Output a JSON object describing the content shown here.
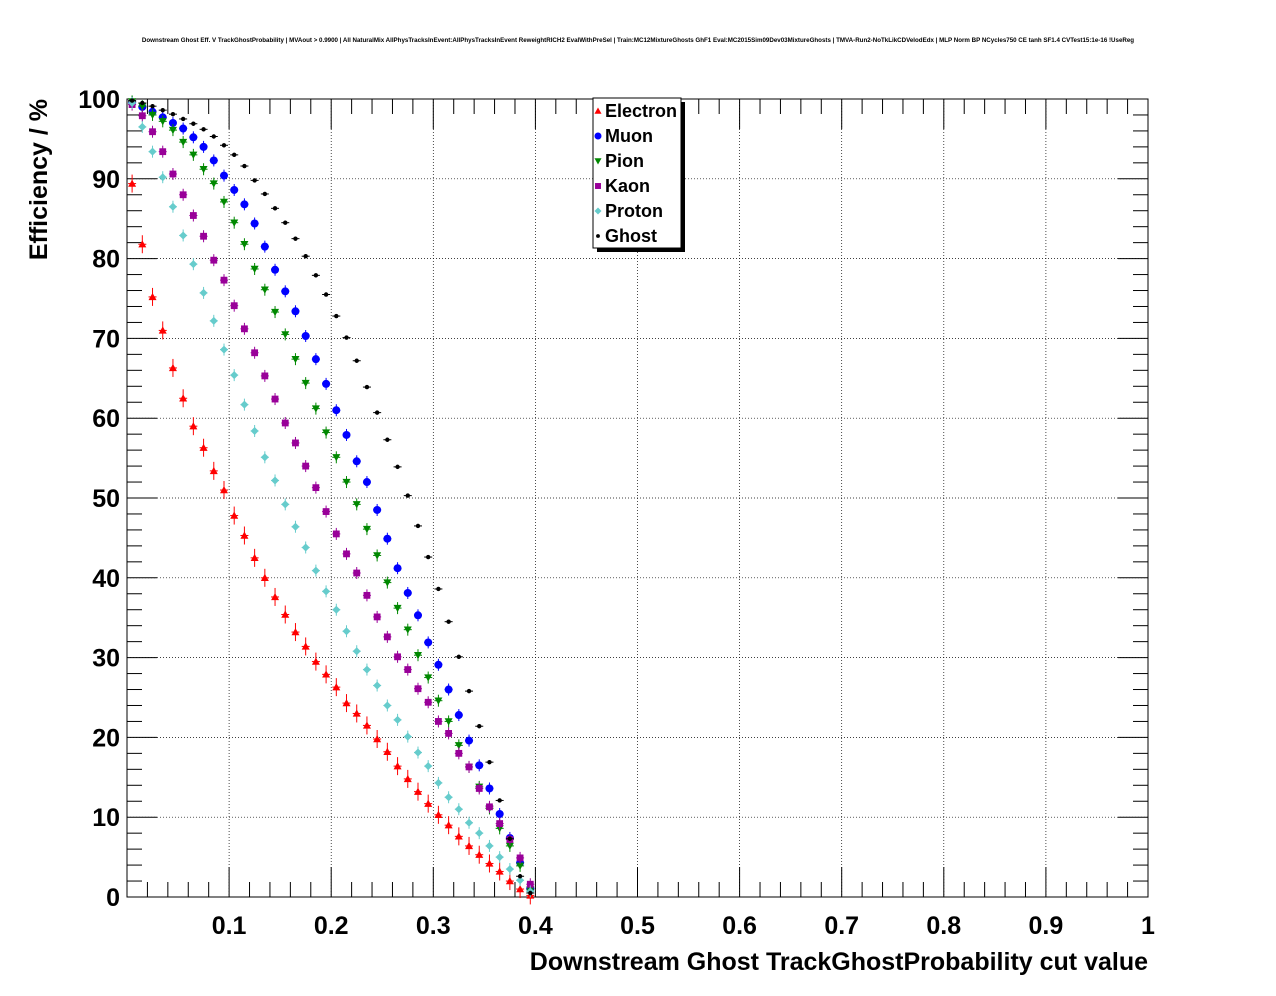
{
  "chart_data": {
    "type": "scatter",
    "title": "Downstream Ghost Eff. V TrackGhostProbability | MVAout > 0.9900 | All NaturalMix AllPhysTracksInEvent:AllPhysTracksInEvent ReweightRICH2 EvalWithPreSel | Train:MC12MixtureGhosts GhF1 Eval:MC2015Sim09Dev03MixtureGhosts | TMVA-Run2-NoTkLikCDVelodEdx | MLP Norm BP NCycles750 CE tanh SF1.4 CVTest15:1e-16 !UseReg",
    "xlabel": "Downstream Ghost TrackGhostProbability cut value",
    "ylabel": "Efficiency / %",
    "xlim": [
      0,
      1
    ],
    "ylim": [
      0,
      100
    ],
    "x_ticks": [
      0.1,
      0.2,
      0.3,
      0.4,
      0.5,
      0.6,
      0.7,
      0.8,
      0.9,
      1
    ],
    "x_tick_labels": [
      "0.1",
      "0.2",
      "0.3",
      "0.4",
      "0.5",
      "0.6",
      "0.7",
      "0.8",
      "0.9",
      "1"
    ],
    "y_ticks": [
      0,
      10,
      20,
      30,
      40,
      50,
      60,
      70,
      80,
      90,
      100
    ],
    "y_tick_labels": [
      "0",
      "10",
      "20",
      "30",
      "40",
      "50",
      "60",
      "70",
      "80",
      "90",
      "100"
    ],
    "grid": true,
    "legend_position": "top-center",
    "x": [
      0.005,
      0.015,
      0.025,
      0.035,
      0.045,
      0.055,
      0.065,
      0.075,
      0.085,
      0.095,
      0.105,
      0.115,
      0.125,
      0.135,
      0.145,
      0.155,
      0.165,
      0.175,
      0.185,
      0.195,
      0.205,
      0.215,
      0.225,
      0.235,
      0.245,
      0.255,
      0.265,
      0.275,
      0.285,
      0.295,
      0.305,
      0.315,
      0.325,
      0.335,
      0.345,
      0.355,
      0.365,
      0.375,
      0.385,
      0.395
    ],
    "series": [
      {
        "name": "Electron",
        "marker": "triangle-up",
        "color": "#ff0000",
        "values": [
          89.4,
          81.8,
          75.2,
          71.0,
          66.3,
          62.5,
          59.0,
          56.3,
          53.4,
          51.0,
          47.8,
          45.3,
          42.5,
          40.0,
          37.6,
          35.4,
          33.2,
          31.4,
          29.5,
          27.9,
          26.3,
          24.3,
          23.0,
          21.5,
          19.8,
          18.2,
          16.4,
          14.8,
          13.2,
          11.7,
          10.3,
          9.0,
          7.6,
          6.4,
          5.3,
          4.2,
          3.2,
          2.0,
          1.0,
          0.2
        ]
      },
      {
        "name": "Muon",
        "marker": "circle",
        "color": "#0000ff",
        "values": [
          99.6,
          99.0,
          98.4,
          97.7,
          97.0,
          96.3,
          95.2,
          94.0,
          92.3,
          90.4,
          88.6,
          86.8,
          84.4,
          81.5,
          78.6,
          75.9,
          73.4,
          70.3,
          67.4,
          64.3,
          61.0,
          57.9,
          54.6,
          52.0,
          48.5,
          44.9,
          41.2,
          38.1,
          35.3,
          31.9,
          29.1,
          26.0,
          22.8,
          19.6,
          16.5,
          13.6,
          10.4,
          7.4,
          4.3,
          1.1
        ]
      },
      {
        "name": "Pion",
        "marker": "triangle-down",
        "color": "#008800",
        "values": [
          99.7,
          99.1,
          98.0,
          97.2,
          96.1,
          94.6,
          93.0,
          91.2,
          89.4,
          87.1,
          84.5,
          81.8,
          78.7,
          76.1,
          73.3,
          70.5,
          67.4,
          64.4,
          61.2,
          58.2,
          55.1,
          52.0,
          49.2,
          46.1,
          42.8,
          39.4,
          36.2,
          33.5,
          30.3,
          27.5,
          24.6,
          22.0,
          19.0,
          16.3,
          13.8,
          11.1,
          8.6,
          6.4,
          3.9,
          0.9
        ]
      },
      {
        "name": "Kaon",
        "marker": "square",
        "color": "#990099",
        "values": [
          99.3,
          97.9,
          95.9,
          93.4,
          90.6,
          88.0,
          85.4,
          82.8,
          79.8,
          77.3,
          74.1,
          71.2,
          68.2,
          65.3,
          62.4,
          59.4,
          56.9,
          54.0,
          51.3,
          48.3,
          45.5,
          43.0,
          40.6,
          37.8,
          35.1,
          32.6,
          30.1,
          28.5,
          26.1,
          24.4,
          22.0,
          20.5,
          18.0,
          16.3,
          13.6,
          11.3,
          9.2,
          7.2,
          4.9,
          1.6
        ]
      },
      {
        "name": "Proton",
        "marker": "diamond",
        "color": "#66cccc",
        "values": [
          99.5,
          96.5,
          93.4,
          90.2,
          86.5,
          82.9,
          79.3,
          75.7,
          72.2,
          68.6,
          65.4,
          61.7,
          58.4,
          55.1,
          52.2,
          49.2,
          46.4,
          43.8,
          40.9,
          38.3,
          36.0,
          33.3,
          30.8,
          28.5,
          26.5,
          24.0,
          22.2,
          20.1,
          18.1,
          16.4,
          14.3,
          12.5,
          11.0,
          9.3,
          8.0,
          6.4,
          5.0,
          3.5,
          2.1,
          0.7
        ]
      },
      {
        "name": "Ghost",
        "marker": "dot",
        "color": "#000000",
        "values": [
          99.8,
          99.5,
          99.1,
          98.6,
          98.1,
          97.5,
          96.9,
          96.2,
          95.3,
          94.2,
          93.0,
          91.6,
          89.8,
          88.1,
          86.3,
          84.5,
          82.5,
          80.3,
          77.9,
          75.5,
          72.8,
          70.1,
          67.2,
          63.9,
          60.7,
          57.3,
          53.9,
          50.3,
          46.5,
          42.6,
          38.6,
          34.5,
          30.1,
          25.8,
          21.4,
          16.9,
          12.1,
          7.3,
          2.6,
          0.5
        ]
      }
    ]
  }
}
